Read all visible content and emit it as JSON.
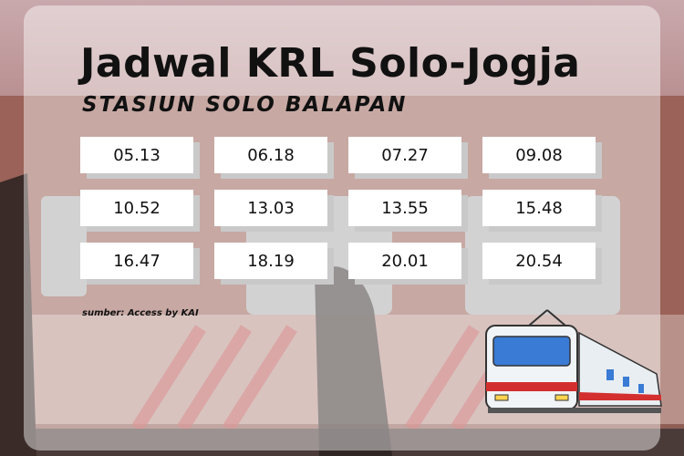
{
  "header": {
    "title": "Jadwal KRL Solo-Jogja",
    "subtitle": "STASIUN SOLO BALAPAN"
  },
  "table": {
    "rows": [
      [
        "05.13",
        "06.18",
        "07.27",
        "09.08"
      ],
      [
        "10.52",
        "13.03",
        "13.55",
        "15.48"
      ],
      [
        "16.47",
        "18.19",
        "20.01",
        "20.54"
      ]
    ]
  },
  "footer": {
    "source": "sumber: Access by KAI"
  }
}
